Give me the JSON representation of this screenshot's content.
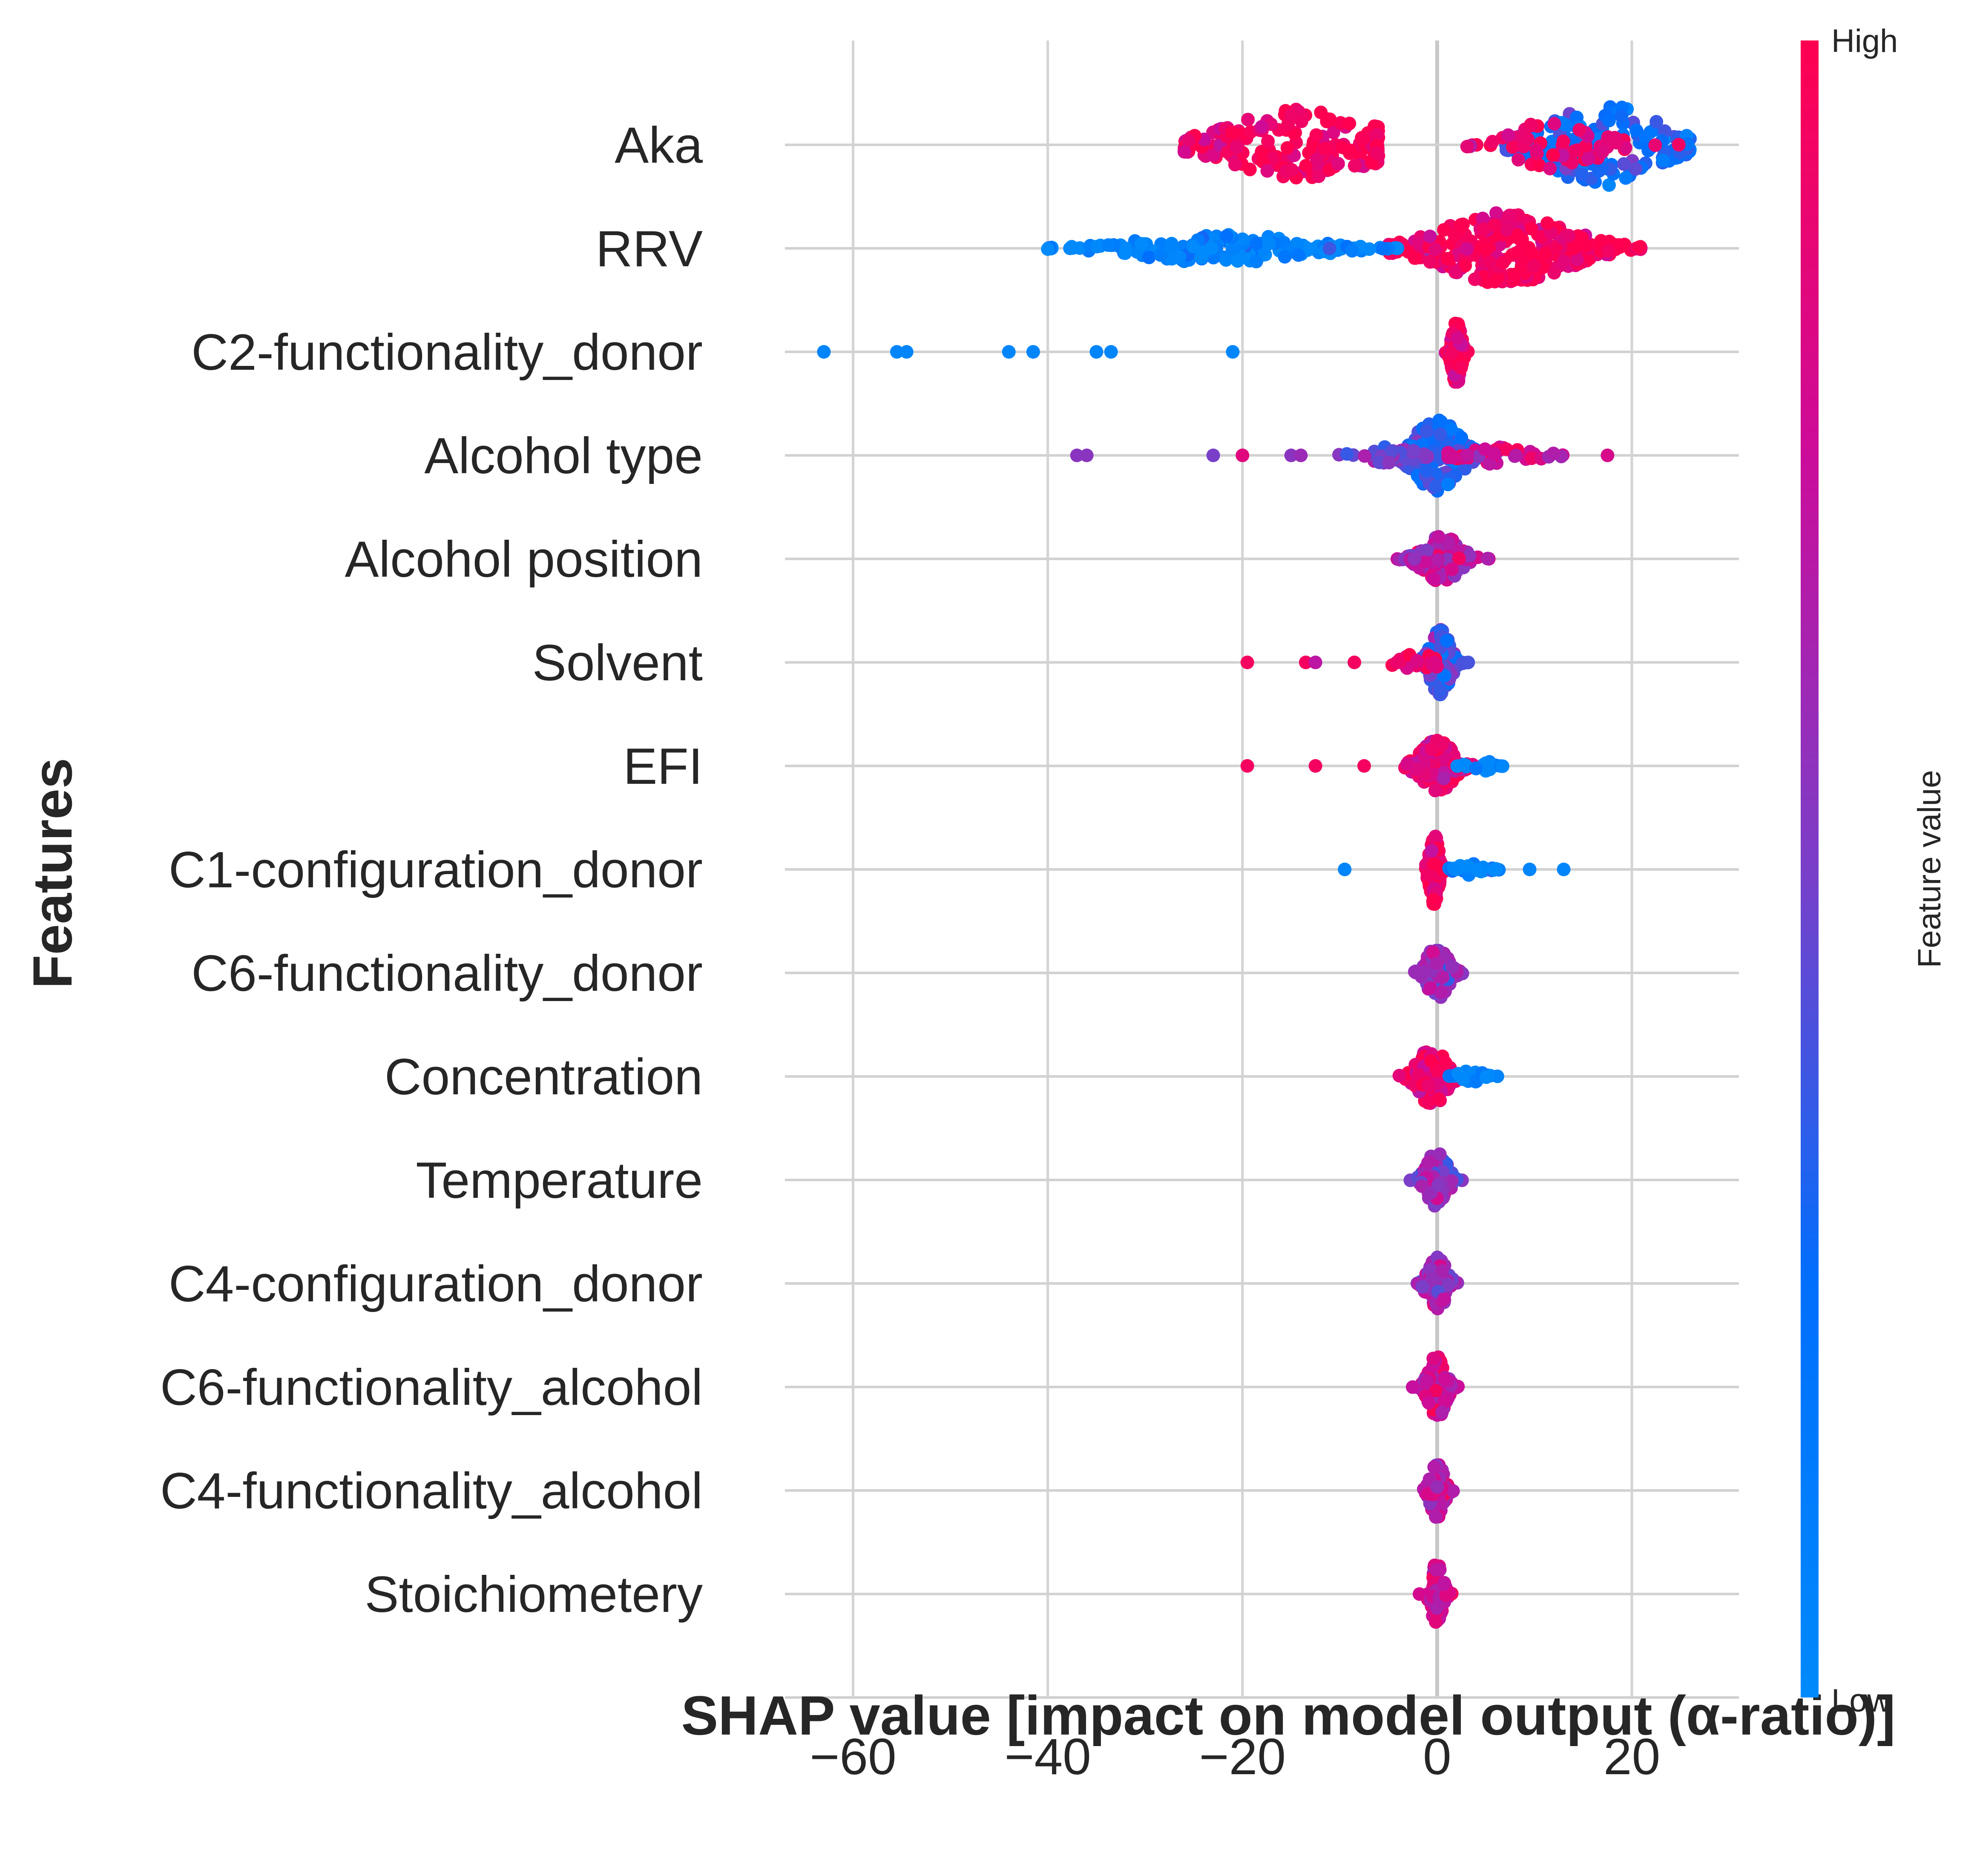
{
  "chart_data": {
    "type": "scatter",
    "subtype": "shap-beeswarm",
    "title": "",
    "xlabel": "SHAP value [impact on model output (α-ratio)]",
    "ylabel": "Features",
    "xlim": [
      -67,
      31
    ],
    "xticks": [
      -60,
      -40,
      -20,
      0,
      20
    ],
    "xtick_labels": [
      "−60",
      "−40",
      "−20",
      "0",
      "20"
    ],
    "grid": true,
    "colorbar": {
      "label": "Feature value",
      "high_label": "High",
      "low_label": "Low",
      "low_color": "#008afb",
      "high_color": "#ff0051"
    },
    "features": [
      {
        "name": "Aka",
        "clusters": [
          {
            "c": -14,
            "s": 8,
            "v": 0.95,
            "n": 210,
            "amp": 12,
            "mn": -26,
            "mx": -6
          },
          {
            "c": 17,
            "s": 6,
            "v": 0.25,
            "n": 180,
            "amp": 14,
            "mn": 7,
            "mx": 26
          },
          {
            "c": 12,
            "s": 5,
            "v": 0.9,
            "n": 60,
            "amp": 8,
            "mn": 3,
            "mx": 25
          }
        ]
      },
      {
        "name": "RRV",
        "clusters": [
          {
            "c": 7,
            "s": 7,
            "v": 0.95,
            "n": 320,
            "amp": 12,
            "mn": -5,
            "mx": 21
          },
          {
            "c": -22,
            "s": 9,
            "v": 0.05,
            "n": 150,
            "amp": 5,
            "mn": -40,
            "mx": -4
          }
        ]
      },
      {
        "name": "C2-functionality_donor",
        "clusters": [
          {
            "c": 2,
            "s": 0.5,
            "v": 0.95,
            "n": 120,
            "amp": 11,
            "mn": 0.8,
            "mx": 3.2
          }
        ],
        "points": [
          {
            "x": -63,
            "v": 0.05
          },
          {
            "x": -55.5,
            "v": 0.05
          },
          {
            "x": -54.5,
            "v": 0.05
          },
          {
            "x": -44,
            "v": 0.05
          },
          {
            "x": -41.5,
            "v": 0.05
          },
          {
            "x": -35,
            "v": 0.05
          },
          {
            "x": -33.5,
            "v": 0.05
          },
          {
            "x": -21,
            "v": 0.05
          }
        ]
      },
      {
        "name": "Alcohol type",
        "clusters": [
          {
            "c": 0,
            "s": 2.5,
            "v": 0.3,
            "n": 160,
            "amp": 12,
            "mn": -6,
            "mx": 6
          },
          {
            "c": 6,
            "s": 4,
            "v": 0.8,
            "n": 40,
            "amp": 3,
            "mn": 1,
            "mx": 13
          },
          {
            "c": -5,
            "s": 3,
            "v": 0.5,
            "n": 40,
            "amp": 3,
            "mn": -12,
            "mx": -1
          }
        ],
        "points": [
          {
            "x": -37,
            "v": 0.55
          },
          {
            "x": -36,
            "v": 0.55
          },
          {
            "x": -23,
            "v": 0.5
          },
          {
            "x": -20,
            "v": 0.85
          },
          {
            "x": -15,
            "v": 0.55
          },
          {
            "x": -14,
            "v": 0.6
          },
          {
            "x": 17.5,
            "v": 0.8
          }
        ]
      },
      {
        "name": "Alcohol position",
        "clusters": [
          {
            "c": 0.5,
            "s": 2,
            "v": 0.7,
            "n": 130,
            "amp": 8,
            "mn": -5,
            "mx": 5.5
          }
        ]
      },
      {
        "name": "Solvent",
        "clusters": [
          {
            "c": 0.3,
            "s": 1.1,
            "v": 0.4,
            "n": 150,
            "amp": 11,
            "mn": -4,
            "mx": 4.5
          },
          {
            "c": -2,
            "s": 2,
            "v": 0.9,
            "n": 25,
            "amp": 3,
            "mn": -5,
            "mx": 0
          }
        ],
        "points": [
          {
            "x": -19.5,
            "v": 0.95
          },
          {
            "x": -13.5,
            "v": 0.95
          },
          {
            "x": -12.5,
            "v": 0.7
          },
          {
            "x": -8.5,
            "v": 0.95
          }
        ]
      },
      {
        "name": "EFI",
        "clusters": [
          {
            "c": 0,
            "s": 1.8,
            "v": 0.85,
            "n": 120,
            "amp": 9,
            "mn": -5,
            "mx": 4
          },
          {
            "c": 4.5,
            "s": 1.2,
            "v": 0.08,
            "n": 18,
            "amp": 2,
            "mn": 2,
            "mx": 7
          }
        ],
        "points": [
          {
            "x": -19.5,
            "v": 0.95
          },
          {
            "x": -12.5,
            "v": 0.95
          },
          {
            "x": -7.5,
            "v": 0.95
          }
        ]
      },
      {
        "name": "C1-configuration_donor",
        "clusters": [
          {
            "c": -0.3,
            "s": 0.5,
            "v": 0.95,
            "n": 130,
            "amp": 12,
            "mn": -1.2,
            "mx": 0.8
          },
          {
            "c": 3.5,
            "s": 1.5,
            "v": 0.05,
            "n": 25,
            "amp": 2,
            "mn": 1,
            "mx": 6.5
          }
        ],
        "points": [
          {
            "x": -9.5,
            "v": 0.05
          },
          {
            "x": 9.5,
            "v": 0.05
          },
          {
            "x": 13,
            "v": 0.05
          }
        ]
      },
      {
        "name": "C6-functionality_donor",
        "clusters": [
          {
            "c": 0,
            "s": 1.2,
            "v": 0.6,
            "n": 110,
            "amp": 9,
            "mn": -2.5,
            "mx": 2.8
          }
        ]
      },
      {
        "name": "Concentration",
        "clusters": [
          {
            "c": -0.5,
            "s": 1.5,
            "v": 0.9,
            "n": 100,
            "amp": 10,
            "mn": -5,
            "mx": 2
          },
          {
            "c": 3.5,
            "s": 1.3,
            "v": 0.05,
            "n": 22,
            "amp": 2,
            "mn": 1,
            "mx": 6.5
          }
        ]
      },
      {
        "name": "Temperature",
        "clusters": [
          {
            "c": 0,
            "s": 1.1,
            "v": 0.55,
            "n": 110,
            "amp": 10,
            "mn": -3,
            "mx": 3
          }
        ]
      },
      {
        "name": "C4-configuration_donor",
        "clusters": [
          {
            "c": 0,
            "s": 1,
            "v": 0.6,
            "n": 100,
            "amp": 9,
            "mn": -2.5,
            "mx": 3
          }
        ]
      },
      {
        "name": "C6-functionality_alcohol",
        "clusters": [
          {
            "c": 0,
            "s": 0.9,
            "v": 0.75,
            "n": 110,
            "amp": 11,
            "mn": -3,
            "mx": 2.5
          }
        ]
      },
      {
        "name": "C4-functionality_alcohol",
        "clusters": [
          {
            "c": 0,
            "s": 0.7,
            "v": 0.7,
            "n": 90,
            "amp": 10,
            "mn": -1.5,
            "mx": 1.8
          }
        ]
      },
      {
        "name": "Stoichiometery",
        "clusters": [
          {
            "c": 0,
            "s": 0.6,
            "v": 0.75,
            "n": 100,
            "amp": 11,
            "mn": -2,
            "mx": 1.5
          }
        ]
      }
    ]
  }
}
